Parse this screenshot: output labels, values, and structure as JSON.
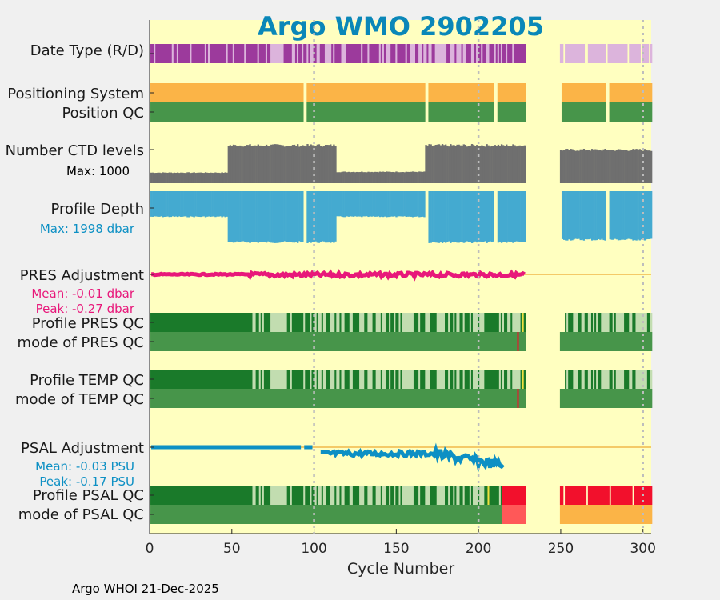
{
  "chart_data": {
    "type": "bar",
    "title": "Argo WMO 2902205",
    "xlabel": "Cycle Number",
    "xlim": [
      0,
      305
    ],
    "xticks": [
      "0",
      "50",
      "100",
      "150",
      "200",
      "250",
      "300"
    ],
    "xtick_values": [
      0,
      50,
      100,
      150,
      200,
      250,
      300
    ],
    "grid_x": [
      100,
      200,
      300
    ],
    "footer": "Argo WHOI 21-Dec-2025",
    "colors": {
      "background": "#ffffc0",
      "figure": "#f0f0f0",
      "delayed": "#9c3a9c",
      "realtime": "#dcb4dc",
      "positioning": "#fbb447",
      "qc_good": "#47954a",
      "qc_dark": "#1a7a2a",
      "qc_light": "#c2ddb0",
      "ctd": "#6f6f6f",
      "depth": "#44aad0",
      "pres_adj": "#e8187a",
      "psal_adj": "#0d90c4",
      "qc_bad": "#f2102c",
      "qc_bad_light": "#ff5858",
      "zero_line": "#f0b84a"
    },
    "gaps": [
      [
        229,
        249
      ]
    ],
    "rows": {
      "data_type": {
        "label": "Date Type (R/D)",
        "delayed_end": 61,
        "delayed_to_realtime_switch": 229,
        "after_gap": "realtime"
      },
      "positioning": {
        "label": "Positioning System",
        "value": "uniform"
      },
      "position_qc": {
        "label": "Position QC",
        "value": "good"
      },
      "ctd_levels": {
        "label": "Number CTD levels",
        "max_label": "Max: 1000",
        "max": 1000,
        "segments": [
          {
            "from": 1,
            "to": 47,
            "value": 280
          },
          {
            "from": 48,
            "to": 113,
            "value": 1000
          },
          {
            "from": 114,
            "to": 167,
            "value": 300
          },
          {
            "from": 168,
            "to": 228,
            "value": 1000
          },
          {
            "from": 250,
            "to": 305,
            "value": 880
          }
        ]
      },
      "profile_depth": {
        "label": "Profile Depth",
        "max_label": "Max: 1998 dbar",
        "max_dbar": 1998,
        "segments": [
          {
            "from": 1,
            "to": 47,
            "value": 1000
          },
          {
            "from": 48,
            "to": 113,
            "value": 1998
          },
          {
            "from": 114,
            "to": 167,
            "value": 1000
          },
          {
            "from": 168,
            "to": 228,
            "value": 1998
          },
          {
            "from": 250,
            "to": 305,
            "value": 1900
          }
        ]
      },
      "pres_adjustment": {
        "label": "PRES Adjustment",
        "mean_label": "Mean: -0.01 dbar",
        "peak_label": "Peak: -0.27 dbar",
        "mean": -0.01,
        "peak": -0.27,
        "data_end": 228
      },
      "profile_pres_qc": {
        "label": "Profile PRES QC"
      },
      "mode_pres_qc": {
        "label": "mode of PRES QC"
      },
      "profile_temp_qc": {
        "label": "Profile TEMP QC"
      },
      "mode_temp_qc": {
        "label": "mode of TEMP QC"
      },
      "psal_adjustment": {
        "label": "PSAL Adjustment",
        "mean_label": "Mean: -0.03 PSU",
        "peak_label": "Peak: -0.17 PSU",
        "mean": -0.03,
        "peak": -0.17,
        "data_end": 215
      },
      "profile_psal_qc": {
        "label": "Profile PSAL QC"
      },
      "mode_psal_qc": {
        "label": "mode of PSAL QC"
      }
    }
  }
}
